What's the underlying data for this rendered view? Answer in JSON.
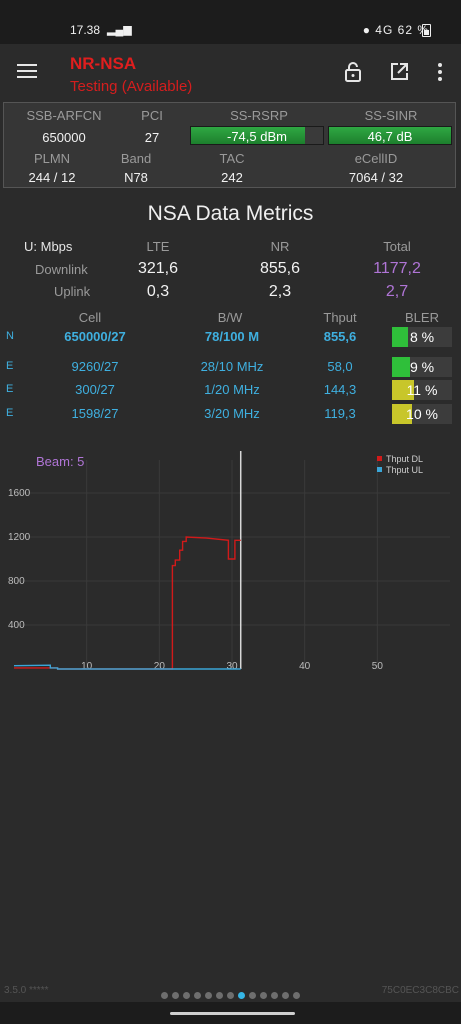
{
  "status_bar": {
    "time": "17.38",
    "signal": "4G",
    "battery": "62 %"
  },
  "toolbar": {
    "title": "NR-NSA",
    "subtitle": "Testing (Available)"
  },
  "cell": {
    "labels": {
      "arfcn": "SSB-ARFCN",
      "pci": "PCI",
      "rsrp": "SS-RSRP",
      "sinr": "SS-SINR",
      "plmn": "PLMN",
      "band": "Band",
      "tac": "TAC",
      "ecellid": "eCellID"
    },
    "values": {
      "arfcn": "650000",
      "pci": "27",
      "rsrp": "-74,5 dBm",
      "sinr": "46,7 dB",
      "plmn": "244 / 12",
      "band": "N78",
      "tac": "242",
      "ecellid": "7064 / 32"
    },
    "rsrp_level": 0.86,
    "sinr_level": 1.0
  },
  "metrics": {
    "title": "NSA Data Metrics",
    "unit": "U: Mbps",
    "col_lte": "LTE",
    "col_nr": "NR",
    "col_total": "Total",
    "downlink": {
      "label": "Downlink",
      "lte": "321,6",
      "nr": "855,6",
      "total": "1177,2"
    },
    "uplink": {
      "label": "Uplink",
      "lte": "0,3",
      "nr": "2,3",
      "total": "2,7"
    }
  },
  "cells_table": {
    "headers": {
      "cell": "Cell",
      "bw": "B/W",
      "thput": "Thput",
      "bler": "BLER"
    },
    "rows": [
      {
        "tag": "N",
        "cell": "650000/27",
        "bw": "78/100 M",
        "thput": "855,6",
        "bler": "8 %",
        "bler_value": 8,
        "bold": true,
        "color": "#2fbf3a"
      },
      {
        "tag": "E",
        "cell": "9260/27",
        "bw": "28/10 MHz",
        "thput": "58,0",
        "bler": "9 %",
        "bler_value": 9,
        "bold": false,
        "color": "#2fbf3a"
      },
      {
        "tag": "E",
        "cell": "300/27",
        "bw": "1/20 MHz",
        "thput": "144,3",
        "bler": "11 %",
        "bler_value": 11,
        "bold": false,
        "color": "#c8c62a"
      },
      {
        "tag": "E",
        "cell": "1598/27",
        "bw": "3/20 MHz",
        "thput": "119,3",
        "bler": "10 %",
        "bler_value": 10,
        "bold": false,
        "color": "#c8c62a"
      }
    ]
  },
  "chart_data": {
    "type": "line",
    "title": "Beam: 5",
    "x_ticks": [
      "10",
      "20",
      "30",
      "40",
      "50"
    ],
    "y_ticks": [
      "400",
      "800",
      "1200",
      "1600"
    ],
    "xlim": [
      0,
      60
    ],
    "ylim": [
      0,
      1900
    ],
    "grid": true,
    "legend_position": "top-right",
    "cursor_x": 31.2,
    "series": [
      {
        "name": "Thput DL",
        "color": "#d11a1a",
        "points": [
          [
            0,
            10
          ],
          [
            6,
            10
          ],
          [
            6,
            0
          ],
          [
            21.8,
            0
          ],
          [
            21.8,
            940
          ],
          [
            22.2,
            940
          ],
          [
            22.2,
            990
          ],
          [
            22.8,
            990
          ],
          [
            22.8,
            1080
          ],
          [
            23.2,
            1080
          ],
          [
            23.2,
            1160
          ],
          [
            23.7,
            1160
          ],
          [
            23.7,
            1200
          ],
          [
            26.5,
            1190
          ],
          [
            29.5,
            1170
          ],
          [
            29.5,
            1000
          ],
          [
            30.4,
            1000
          ],
          [
            30.4,
            1170
          ],
          [
            31.2,
            1170
          ]
        ]
      },
      {
        "name": "Thput UL",
        "color": "#3aa6d8",
        "points": [
          [
            0,
            30
          ],
          [
            5,
            35
          ],
          [
            5,
            10
          ],
          [
            6,
            10
          ],
          [
            6,
            0
          ],
          [
            31.2,
            0
          ]
        ]
      }
    ]
  },
  "footer": {
    "version": "3.5.0 *****",
    "device_id": "75C0EC3C8CBC",
    "page_count": 13,
    "active_page": 8
  }
}
